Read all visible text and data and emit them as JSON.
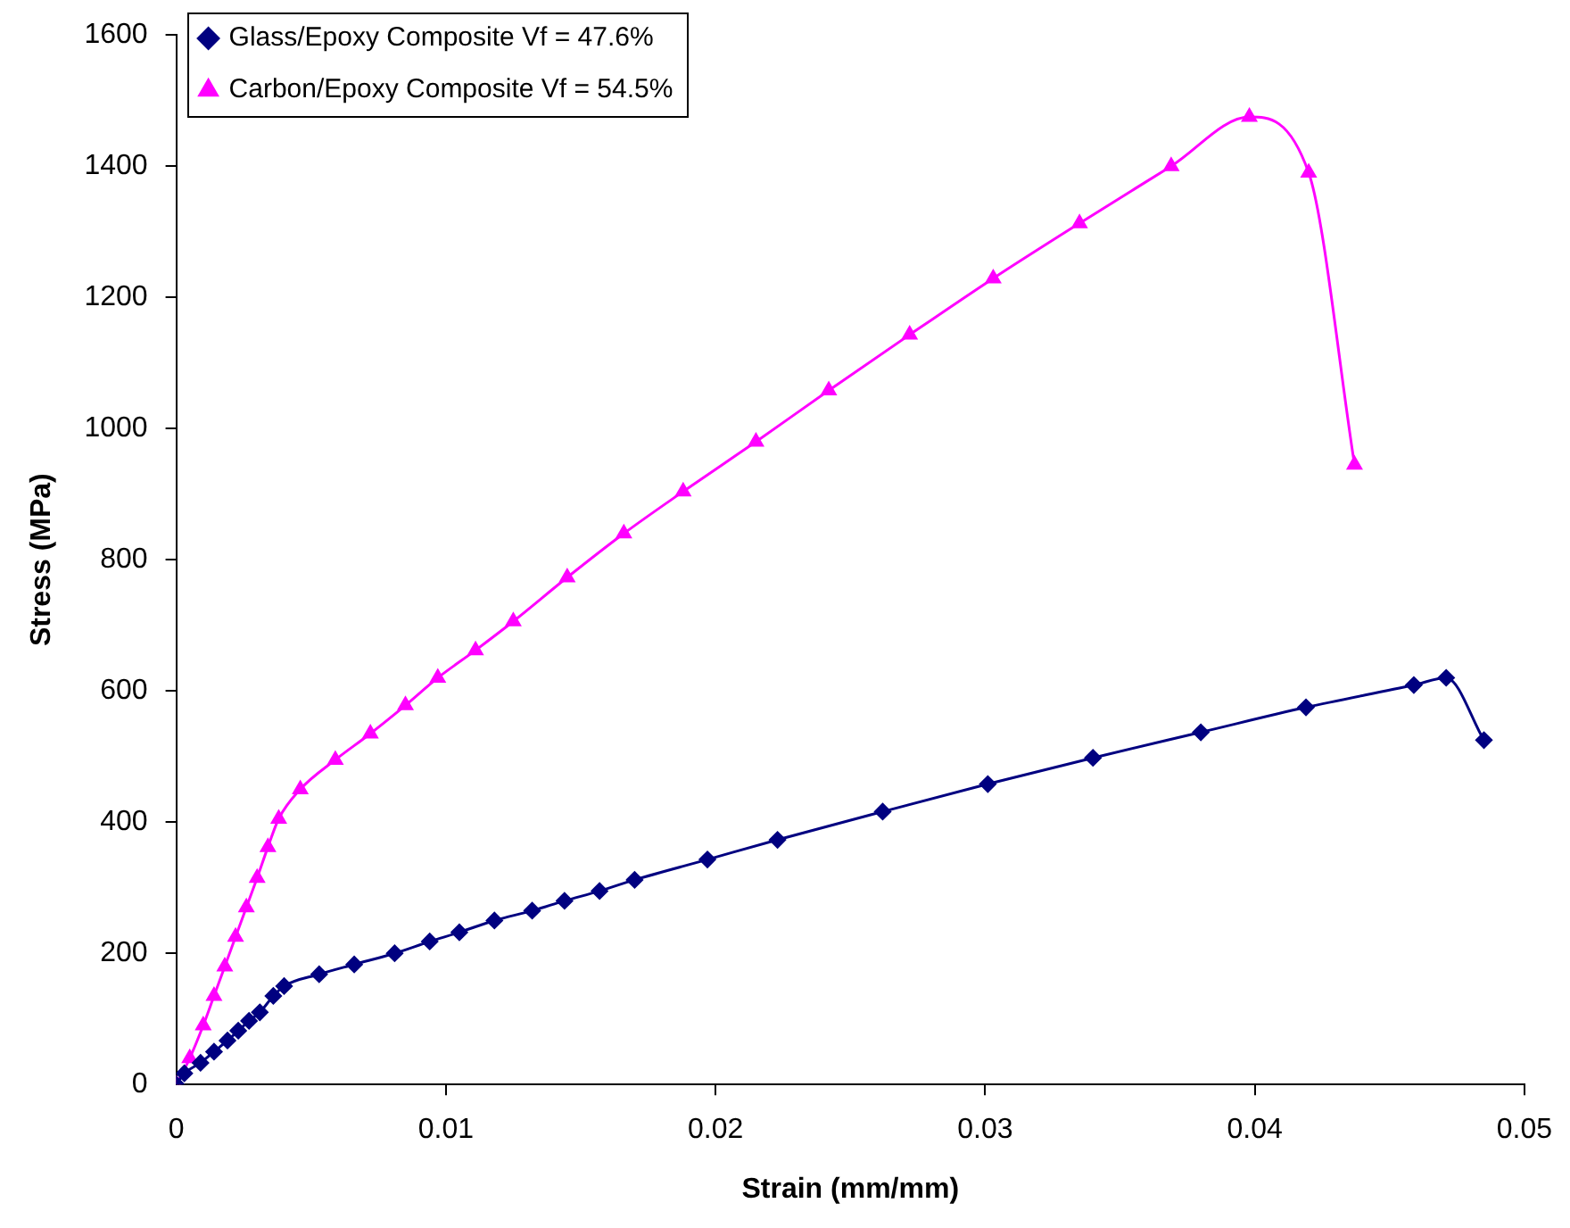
{
  "chart_data": {
    "type": "line",
    "xlabel": "Strain (mm/mm)",
    "ylabel": "Stress (MPa)",
    "xlim": [
      0,
      0.05
    ],
    "xticks": [
      0,
      0.01,
      0.02,
      0.03,
      0.04,
      0.05
    ],
    "ylim": [
      0,
      1600
    ],
    "yticks": [
      0,
      200,
      400,
      600,
      800,
      1000,
      1200,
      1400,
      1600
    ],
    "grid": false,
    "legend": "top left",
    "line_style": "solid",
    "series": [
      {
        "name": "Glass/Epoxy Composite Vf = 47.6%",
        "color": "#000080",
        "marker": "diamond",
        "x": [
          0,
          0.0003,
          0.0009,
          0.0014,
          0.0019,
          0.0023,
          0.0027,
          0.0031,
          0.0036,
          0.004,
          0.0053,
          0.0066,
          0.0081,
          0.0094,
          0.0105,
          0.0118,
          0.0132,
          0.0144,
          0.0157,
          0.017,
          0.0197,
          0.0223,
          0.0262,
          0.0301,
          0.034,
          0.038,
          0.0419,
          0.0459,
          0.0471,
          0.0485
        ],
        "values": [
          0,
          17,
          33,
          50,
          67,
          82,
          97,
          110,
          135,
          150,
          168,
          183,
          200,
          218,
          232,
          250,
          265,
          280,
          295,
          312,
          343,
          373,
          416,
          458,
          498,
          537,
          575,
          609,
          620,
          525
        ]
      },
      {
        "name": "Carbon/Epoxy Composite Vf = 54.5%",
        "color": "#ff00ff",
        "marker": "triangle",
        "x": [
          0,
          0.0005,
          0.001,
          0.0014,
          0.0018,
          0.0022,
          0.0026,
          0.003,
          0.0034,
          0.0038,
          0.0046,
          0.0059,
          0.0072,
          0.0085,
          0.0097,
          0.0111,
          0.0125,
          0.0145,
          0.0166,
          0.0188,
          0.0215,
          0.0242,
          0.0272,
          0.0303,
          0.0335,
          0.0369,
          0.0398,
          0.042,
          0.0437
        ],
        "values": [
          0,
          40,
          90,
          135,
          180,
          225,
          270,
          315,
          362,
          405,
          450,
          495,
          535,
          578,
          620,
          662,
          706,
          773,
          840,
          904,
          980,
          1058,
          1143,
          1229,
          1313,
          1400,
          1475,
          1390,
          945
        ]
      }
    ]
  }
}
